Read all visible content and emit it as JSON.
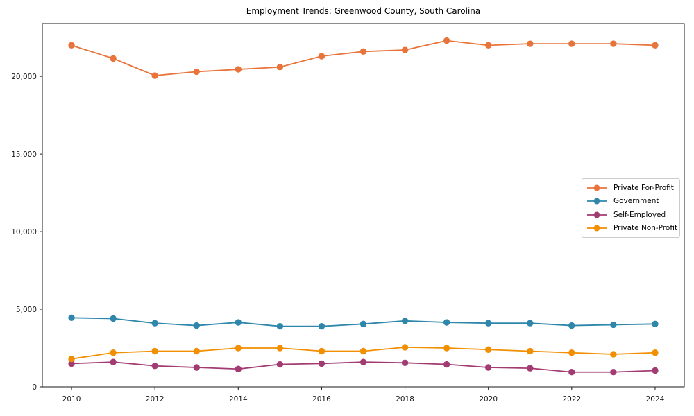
{
  "chart_data": {
    "type": "line",
    "title": "Employment Trends: Greenwood County, South Carolina",
    "xlabel": "",
    "ylabel": "",
    "x": [
      2010,
      2011,
      2012,
      2013,
      2014,
      2015,
      2016,
      2017,
      2018,
      2019,
      2020,
      2021,
      2022,
      2023,
      2024
    ],
    "xticks": [
      2010,
      2012,
      2014,
      2016,
      2018,
      2020,
      2022,
      2024
    ],
    "yticks": [
      0,
      5000,
      10000,
      15000,
      20000
    ],
    "xlim": [
      2009.3,
      2024.7
    ],
    "ylim": [
      0,
      23400
    ],
    "grid": false,
    "legend_position": "center right",
    "series": [
      {
        "name": "Private For-Profit",
        "color": "#E8743B",
        "values": [
          22000,
          21150,
          20050,
          20300,
          20450,
          20600,
          21300,
          21600,
          21700,
          22300,
          22000,
          22100,
          22100,
          22100,
          22000
        ]
      },
      {
        "name": "Government",
        "color": "#2E86AB",
        "values": [
          4450,
          4400,
          4100,
          3950,
          4150,
          3900,
          3900,
          4050,
          4250,
          4150,
          4100,
          4100,
          3950,
          4000,
          4050
        ]
      },
      {
        "name": "Self-Employed",
        "color": "#A23B72",
        "values": [
          1500,
          1600,
          1350,
          1250,
          1150,
          1450,
          1500,
          1600,
          1550,
          1450,
          1250,
          1200,
          950,
          950,
          1050
        ]
      },
      {
        "name": "Private Non-Profit",
        "color": "#F18F01",
        "values": [
          1800,
          2200,
          2300,
          2300,
          2500,
          2500,
          2300,
          2300,
          2550,
          2500,
          2400,
          2300,
          2200,
          2100,
          2200
        ]
      }
    ]
  }
}
